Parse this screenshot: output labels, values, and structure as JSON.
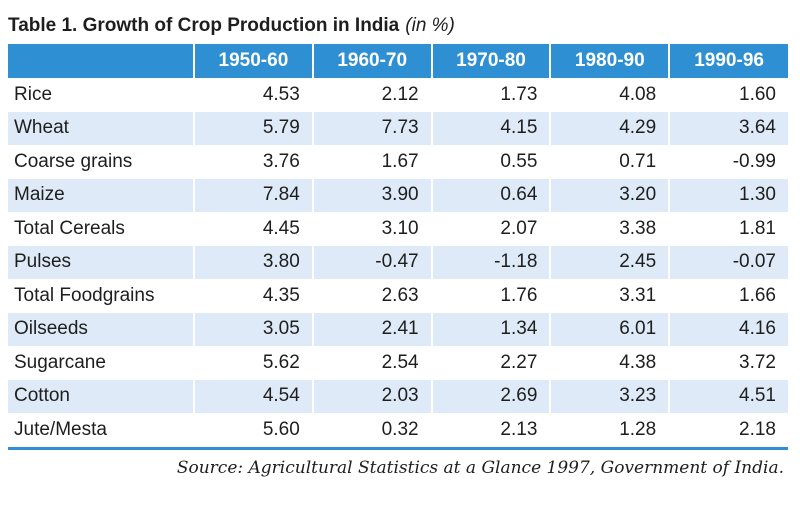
{
  "title": {
    "main": "Table 1. Growth of Crop Production in India",
    "unit": "(in %)"
  },
  "table": {
    "columns": [
      "1950-60",
      "1960-70",
      "1970-80",
      "1980-90",
      "1990-96"
    ],
    "rows": [
      {
        "label": "Rice",
        "values": [
          "4.53",
          "2.12",
          "1.73",
          "4.08",
          "1.60"
        ]
      },
      {
        "label": "Wheat",
        "values": [
          "5.79",
          "7.73",
          "4.15",
          "4.29",
          "3.64"
        ]
      },
      {
        "label": "Coarse grains",
        "values": [
          "3.76",
          "1.67",
          "0.55",
          "0.71",
          "-0.99"
        ]
      },
      {
        "label": "Maize",
        "values": [
          "7.84",
          "3.90",
          "0.64",
          "3.20",
          "1.30"
        ]
      },
      {
        "label": "Total Cereals",
        "values": [
          "4.45",
          "3.10",
          "2.07",
          "3.38",
          "1.81"
        ]
      },
      {
        "label": "Pulses",
        "values": [
          "3.80",
          "-0.47",
          "-1.18",
          "2.45",
          "-0.07"
        ]
      },
      {
        "label": "Total Foodgrains",
        "values": [
          "4.35",
          "2.63",
          "1.76",
          "3.31",
          "1.66"
        ]
      },
      {
        "label": "Oilseeds",
        "values": [
          "3.05",
          "2.41",
          "1.34",
          "6.01",
          "4.16"
        ]
      },
      {
        "label": "Sugarcane",
        "values": [
          "5.62",
          "2.54",
          "2.27",
          "4.38",
          "3.72"
        ]
      },
      {
        "label": "Cotton",
        "values": [
          "4.54",
          "2.03",
          "2.69",
          "3.23",
          "4.51"
        ]
      },
      {
        "label": "Jute/Mesta",
        "values": [
          "5.60",
          "0.32",
          "2.13",
          "1.28",
          "2.18"
        ]
      }
    ]
  },
  "source": "Source: Agricultural Statistics at a Glance 1997, Government of India.",
  "colors": {
    "header_bg": "#2f8fd3",
    "stripe_bg": "#deeaf7",
    "text": "#1e1e1e"
  }
}
